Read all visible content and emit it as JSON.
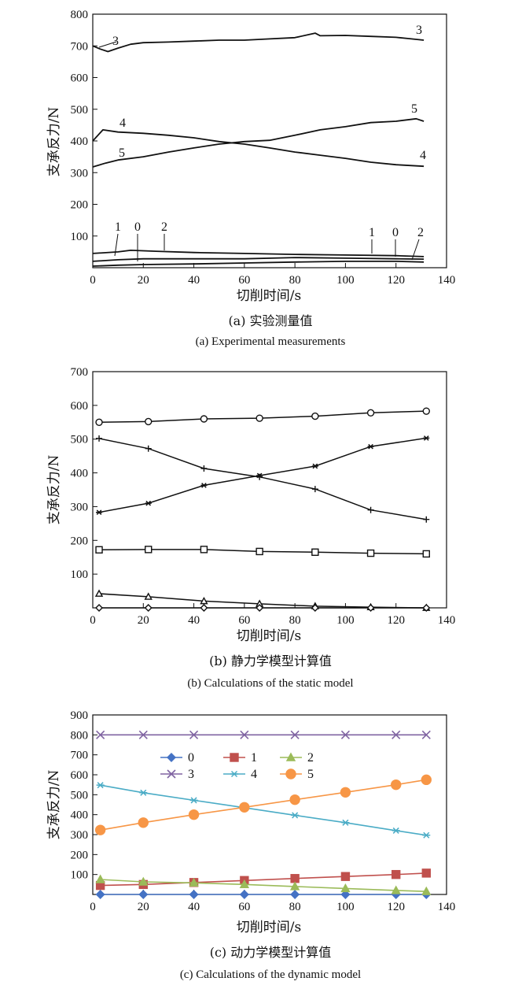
{
  "chart_data": [
    {
      "type": "line",
      "caption_cn": "(a) 实验测量值",
      "caption_en": "(a) Experimental measurements",
      "xlabel": "切削时间/s",
      "ylabel": "支承反力/N",
      "xlim": [
        0,
        140
      ],
      "ylim": [
        0,
        800
      ],
      "xticks": [
        0,
        20,
        40,
        60,
        80,
        100,
        120,
        140
      ],
      "yticks": [
        100,
        200,
        300,
        400,
        500,
        600,
        700,
        800
      ],
      "ytick_labels": [
        "100",
        "200",
        "300",
        "400",
        "500",
        "600",
        "700",
        "800"
      ],
      "xtick_labels": [
        "0",
        "20",
        "40",
        "60",
        "80",
        "100",
        "120",
        "140"
      ],
      "curve_labels": [
        "3",
        "3",
        "4",
        "5",
        "5",
        "4",
        "1",
        "0",
        "2",
        "1",
        "0",
        "2"
      ],
      "series": [
        {
          "name": "3",
          "x": [
            0,
            3,
            6,
            10,
            15,
            20,
            30,
            40,
            50,
            60,
            70,
            80,
            88,
            90,
            100,
            110,
            120,
            125,
            131
          ],
          "y": [
            700,
            690,
            682,
            693,
            705,
            710,
            712,
            715,
            718,
            718,
            722,
            726,
            740,
            732,
            733,
            730,
            727,
            723,
            718
          ]
        },
        {
          "name": "4",
          "x": [
            0,
            4,
            10,
            20,
            30,
            40,
            50,
            60,
            70,
            80,
            90,
            100,
            110,
            120,
            131
          ],
          "y": [
            400,
            435,
            428,
            424,
            418,
            410,
            398,
            390,
            378,
            365,
            355,
            345,
            333,
            325,
            320
          ]
        },
        {
          "name": "5",
          "x": [
            0,
            5,
            10,
            20,
            30,
            40,
            50,
            60,
            70,
            80,
            90,
            100,
            110,
            120,
            128,
            131
          ],
          "y": [
            318,
            330,
            340,
            350,
            365,
            378,
            390,
            398,
            402,
            418,
            435,
            445,
            458,
            462,
            470,
            462
          ]
        },
        {
          "name": "1",
          "x": [
            0,
            10,
            20,
            40,
            60,
            80,
            100,
            120,
            131
          ],
          "y": [
            20,
            25,
            28,
            28,
            28,
            32,
            30,
            28,
            27
          ]
        },
        {
          "name": "0",
          "x": [
            0,
            10,
            20,
            40,
            60,
            80,
            100,
            120,
            131
          ],
          "y": [
            5,
            8,
            10,
            12,
            15,
            18,
            20,
            20,
            18
          ]
        },
        {
          "name": "2",
          "x": [
            0,
            10,
            15,
            25,
            40,
            60,
            80,
            100,
            120,
            131
          ],
          "y": [
            45,
            50,
            55,
            52,
            48,
            45,
            42,
            40,
            38,
            35
          ]
        }
      ]
    },
    {
      "type": "line",
      "caption_cn": "(b) 静力学模型计算值",
      "caption_en": "(b) Calculations of the static model",
      "xlabel": "切削时间/s",
      "ylabel": "支承反力/N",
      "xlim": [
        0,
        140
      ],
      "ylim": [
        0,
        700
      ],
      "xticks": [
        0,
        20,
        40,
        60,
        80,
        100,
        120,
        140
      ],
      "yticks": [
        100,
        200,
        300,
        400,
        500,
        600,
        700
      ],
      "ytick_labels": [
        "100",
        "200",
        "300",
        "400",
        "500",
        "600",
        "700"
      ],
      "xtick_labels": [
        "0",
        "20",
        "40",
        "60",
        "80",
        "100",
        "120",
        "140"
      ],
      "x": [
        2.5,
        22,
        44,
        66,
        88,
        110,
        132
      ],
      "series": [
        {
          "name": "circle",
          "marker": "circle",
          "values": [
            550,
            552,
            560,
            562,
            568,
            578,
            583
          ]
        },
        {
          "name": "plus",
          "marker": "plus",
          "values": [
            502,
            472,
            413,
            388,
            352,
            290,
            262
          ]
        },
        {
          "name": "star",
          "marker": "star",
          "values": [
            283,
            310,
            363,
            392,
            420,
            478,
            503
          ]
        },
        {
          "name": "square",
          "marker": "square",
          "values": [
            172,
            173,
            173,
            167,
            165,
            162,
            160
          ]
        },
        {
          "name": "triangle",
          "marker": "triangle",
          "values": [
            42,
            33,
            20,
            12,
            5,
            2,
            0
          ]
        },
        {
          "name": "diamond",
          "marker": "diamond",
          "values": [
            0,
            0,
            0,
            0,
            0,
            0,
            0
          ]
        }
      ]
    },
    {
      "type": "line",
      "caption_cn": "(c) 动力学模型计算值",
      "caption_en": "(c) Calculations of the dynamic model",
      "xlabel": "切削时间/s",
      "ylabel": "支承反力/N",
      "xlim": [
        0,
        140
      ],
      "ylim": [
        0,
        900
      ],
      "xticks": [
        0,
        20,
        40,
        60,
        80,
        100,
        120,
        140
      ],
      "yticks": [
        100,
        200,
        300,
        400,
        500,
        600,
        700,
        800,
        900
      ],
      "ytick_labels": [
        "100",
        "200",
        "300",
        "400",
        "500",
        "600",
        "700",
        "800",
        "900"
      ],
      "xtick_labels": [
        "0",
        "20",
        "40",
        "60",
        "80",
        "100",
        "120",
        "140"
      ],
      "legend_position": "upper-left",
      "x": [
        3,
        20,
        40,
        60,
        80,
        100,
        120,
        132
      ],
      "series": [
        {
          "name": "0",
          "marker": "diamond",
          "color": "#4472c4",
          "values": [
            0,
            0,
            0,
            0,
            0,
            0,
            0,
            0
          ]
        },
        {
          "name": "1",
          "marker": "square",
          "color": "#c0504d",
          "values": [
            45,
            50,
            60,
            70,
            80,
            90,
            100,
            107
          ]
        },
        {
          "name": "2",
          "marker": "triangle",
          "color": "#9bbb59",
          "values": [
            75,
            63,
            58,
            50,
            40,
            30,
            20,
            15
          ]
        },
        {
          "name": "3",
          "marker": "x",
          "color": "#8064a2",
          "values": [
            800,
            800,
            800,
            800,
            800,
            800,
            800,
            800
          ]
        },
        {
          "name": "4",
          "marker": "star",
          "color": "#4bacc6",
          "values": [
            548,
            510,
            472,
            435,
            397,
            360,
            320,
            297
          ]
        },
        {
          "name": "5",
          "marker": "circle",
          "color": "#f79646",
          "values": [
            323,
            360,
            400,
            437,
            475,
            512,
            550,
            575
          ]
        }
      ]
    }
  ]
}
